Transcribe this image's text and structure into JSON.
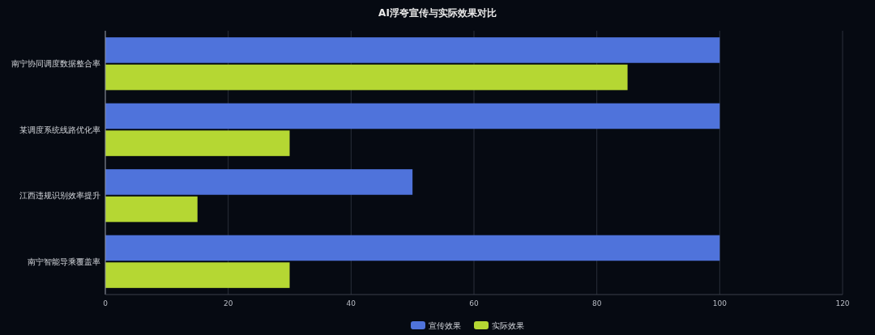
{
  "chart_data": {
    "type": "bar",
    "orientation": "horizontal",
    "title": "AI浮夸宣传与实际效果对比",
    "categories": [
      "南宁协同调度数据整合率",
      "某调度系统线路优化率",
      "江西违规识别效率提升",
      "南宁智能导乘覆盖率"
    ],
    "series": [
      {
        "name": "宣传效果",
        "color": "#4f73db",
        "values": [
          100,
          100,
          50,
          100
        ]
      },
      {
        "name": "实际效果",
        "color": "#b5d733",
        "values": [
          85,
          30,
          15,
          30
        ]
      }
    ],
    "xlim": [
      0,
      120
    ],
    "xticks": [
      0,
      20,
      40,
      60,
      80,
      100,
      120
    ],
    "grid": "x",
    "legend": "bottom"
  }
}
